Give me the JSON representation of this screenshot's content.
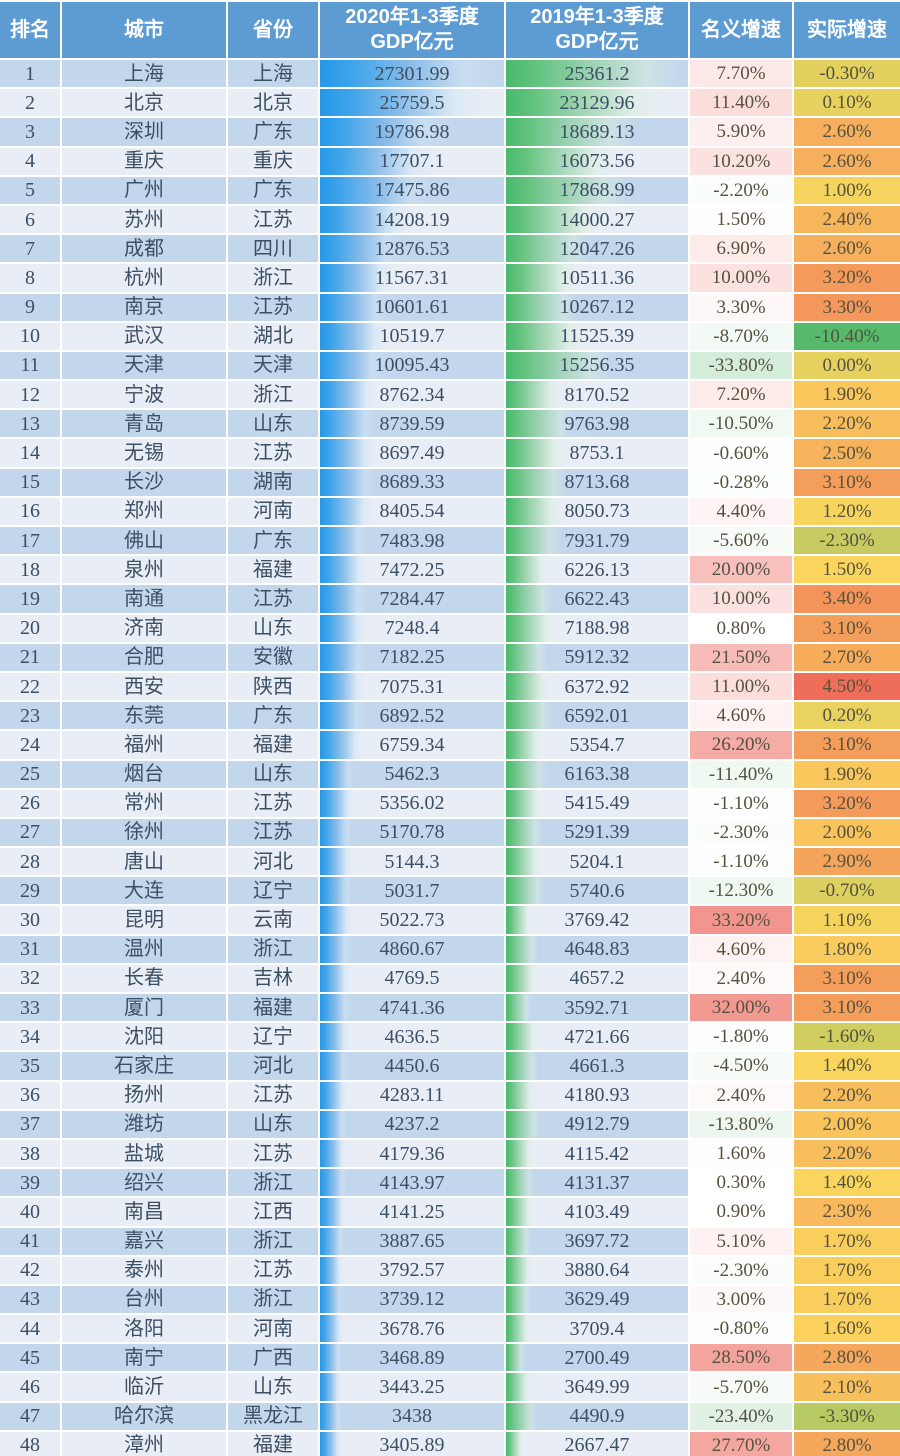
{
  "table_title": "",
  "header": {
    "columns": [
      "排名",
      "城市",
      "省份",
      "2020年1-3季度\nGDP亿元",
      "2019年1-3季度\nGDP亿元",
      "名义增速",
      "实际增速"
    ]
  },
  "colors": {
    "header_bg": "#5d9bd3",
    "stripe_dark": "#c3d7ec",
    "stripe_light": "#e9eef6",
    "bar_blue": "#2598e8",
    "bar_green": "#49b96d",
    "text_main": "#3d4f63",
    "nominal_scale": {
      "min": -33.8,
      "mid": 1.0,
      "max": 33.2,
      "min_color": "#d4ecda",
      "mid_color": "#ffffff",
      "max_color": "#f2958e"
    },
    "real_scale": {
      "min": -10.4,
      "mid": 1.5,
      "max": 4.5,
      "min_color": "#56b96b",
      "mid_color": "#fbd55d",
      "max_color": "#ee6e59"
    }
  },
  "chart_data": {
    "type": "table",
    "title": "2020年1-3季度城市GDP排名",
    "columns": [
      "排名",
      "城市",
      "省份",
      "2020年1-3季度GDP亿元",
      "2019年1-3季度GDP亿元",
      "名义增速",
      "实际增速"
    ],
    "rows": [
      {
        "rank": "1",
        "city": "上海",
        "province": "上海",
        "gdp_2020": "27301.99",
        "gdp_2019": "25361.2",
        "nominal": "7.70%",
        "real": "-0.30%"
      },
      {
        "rank": "2",
        "city": "北京",
        "province": "北京",
        "gdp_2020": "25759.5",
        "gdp_2019": "23129.96",
        "nominal": "11.40%",
        "real": "0.10%"
      },
      {
        "rank": "3",
        "city": "深圳",
        "province": "广东",
        "gdp_2020": "19786.98",
        "gdp_2019": "18689.13",
        "nominal": "5.90%",
        "real": "2.60%"
      },
      {
        "rank": "4",
        "city": "重庆",
        "province": "重庆",
        "gdp_2020": "17707.1",
        "gdp_2019": "16073.56",
        "nominal": "10.20%",
        "real": "2.60%"
      },
      {
        "rank": "5",
        "city": "广州",
        "province": "广东",
        "gdp_2020": "17475.86",
        "gdp_2019": "17868.99",
        "nominal": "-2.20%",
        "real": "1.00%"
      },
      {
        "rank": "6",
        "city": "苏州",
        "province": "江苏",
        "gdp_2020": "14208.19",
        "gdp_2019": "14000.27",
        "nominal": "1.50%",
        "real": "2.40%"
      },
      {
        "rank": "7",
        "city": "成都",
        "province": "四川",
        "gdp_2020": "12876.53",
        "gdp_2019": "12047.26",
        "nominal": "6.90%",
        "real": "2.60%"
      },
      {
        "rank": "8",
        "city": "杭州",
        "province": "浙江",
        "gdp_2020": "11567.31",
        "gdp_2019": "10511.36",
        "nominal": "10.00%",
        "real": "3.20%"
      },
      {
        "rank": "9",
        "city": "南京",
        "province": "江苏",
        "gdp_2020": "10601.61",
        "gdp_2019": "10267.12",
        "nominal": "3.30%",
        "real": "3.30%"
      },
      {
        "rank": "10",
        "city": "武汉",
        "province": "湖北",
        "gdp_2020": "10519.7",
        "gdp_2019": "11525.39",
        "nominal": "-8.70%",
        "real": "-10.40%"
      },
      {
        "rank": "11",
        "city": "天津",
        "province": "天津",
        "gdp_2020": "10095.43",
        "gdp_2019": "15256.35",
        "nominal": "-33.80%",
        "real": "0.00%"
      },
      {
        "rank": "12",
        "city": "宁波",
        "province": "浙江",
        "gdp_2020": "8762.34",
        "gdp_2019": "8170.52",
        "nominal": "7.20%",
        "real": "1.90%"
      },
      {
        "rank": "13",
        "city": "青岛",
        "province": "山东",
        "gdp_2020": "8739.59",
        "gdp_2019": "9763.98",
        "nominal": "-10.50%",
        "real": "2.20%"
      },
      {
        "rank": "14",
        "city": "无锡",
        "province": "江苏",
        "gdp_2020": "8697.49",
        "gdp_2019": "8753.1",
        "nominal": "-0.60%",
        "real": "2.50%"
      },
      {
        "rank": "15",
        "city": "长沙",
        "province": "湖南",
        "gdp_2020": "8689.33",
        "gdp_2019": "8713.68",
        "nominal": "-0.28%",
        "real": "3.10%"
      },
      {
        "rank": "16",
        "city": "郑州",
        "province": "河南",
        "gdp_2020": "8405.54",
        "gdp_2019": "8050.73",
        "nominal": "4.40%",
        "real": "1.20%"
      },
      {
        "rank": "17",
        "city": "佛山",
        "province": "广东",
        "gdp_2020": "7483.98",
        "gdp_2019": "7931.79",
        "nominal": "-5.60%",
        "real": "-2.30%"
      },
      {
        "rank": "18",
        "city": "泉州",
        "province": "福建",
        "gdp_2020": "7472.25",
        "gdp_2019": "6226.13",
        "nominal": "20.00%",
        "real": "1.50%"
      },
      {
        "rank": "19",
        "city": "南通",
        "province": "江苏",
        "gdp_2020": "7284.47",
        "gdp_2019": "6622.43",
        "nominal": "10.00%",
        "real": "3.40%"
      },
      {
        "rank": "20",
        "city": "济南",
        "province": "山东",
        "gdp_2020": "7248.4",
        "gdp_2019": "7188.98",
        "nominal": "0.80%",
        "real": "3.10%"
      },
      {
        "rank": "21",
        "city": "合肥",
        "province": "安徽",
        "gdp_2020": "7182.25",
        "gdp_2019": "5912.32",
        "nominal": "21.50%",
        "real": "2.70%"
      },
      {
        "rank": "22",
        "city": "西安",
        "province": "陕西",
        "gdp_2020": "7075.31",
        "gdp_2019": "6372.92",
        "nominal": "11.00%",
        "real": "4.50%"
      },
      {
        "rank": "23",
        "city": "东莞",
        "province": "广东",
        "gdp_2020": "6892.52",
        "gdp_2019": "6592.01",
        "nominal": "4.60%",
        "real": "0.20%"
      },
      {
        "rank": "24",
        "city": "福州",
        "province": "福建",
        "gdp_2020": "6759.34",
        "gdp_2019": "5354.7",
        "nominal": "26.20%",
        "real": "3.10%"
      },
      {
        "rank": "25",
        "city": "烟台",
        "province": "山东",
        "gdp_2020": "5462.3",
        "gdp_2019": "6163.38",
        "nominal": "-11.40%",
        "real": "1.90%"
      },
      {
        "rank": "26",
        "city": "常州",
        "province": "江苏",
        "gdp_2020": "5356.02",
        "gdp_2019": "5415.49",
        "nominal": "-1.10%",
        "real": "3.20%"
      },
      {
        "rank": "27",
        "city": "徐州",
        "province": "江苏",
        "gdp_2020": "5170.78",
        "gdp_2019": "5291.39",
        "nominal": "-2.30%",
        "real": "2.00%"
      },
      {
        "rank": "28",
        "city": "唐山",
        "province": "河北",
        "gdp_2020": "5144.3",
        "gdp_2019": "5204.1",
        "nominal": "-1.10%",
        "real": "2.90%"
      },
      {
        "rank": "29",
        "city": "大连",
        "province": "辽宁",
        "gdp_2020": "5031.7",
        "gdp_2019": "5740.6",
        "nominal": "-12.30%",
        "real": "-0.70%"
      },
      {
        "rank": "30",
        "city": "昆明",
        "province": "云南",
        "gdp_2020": "5022.73",
        "gdp_2019": "3769.42",
        "nominal": "33.20%",
        "real": "1.10%"
      },
      {
        "rank": "31",
        "city": "温州",
        "province": "浙江",
        "gdp_2020": "4860.67",
        "gdp_2019": "4648.83",
        "nominal": "4.60%",
        "real": "1.80%"
      },
      {
        "rank": "32",
        "city": "长春",
        "province": "吉林",
        "gdp_2020": "4769.5",
        "gdp_2019": "4657.2",
        "nominal": "2.40%",
        "real": "3.10%"
      },
      {
        "rank": "33",
        "city": "厦门",
        "province": "福建",
        "gdp_2020": "4741.36",
        "gdp_2019": "3592.71",
        "nominal": "32.00%",
        "real": "3.10%"
      },
      {
        "rank": "34",
        "city": "沈阳",
        "province": "辽宁",
        "gdp_2020": "4636.5",
        "gdp_2019": "4721.66",
        "nominal": "-1.80%",
        "real": "-1.60%"
      },
      {
        "rank": "35",
        "city": "石家庄",
        "province": "河北",
        "gdp_2020": "4450.6",
        "gdp_2019": "4661.3",
        "nominal": "-4.50%",
        "real": "1.40%"
      },
      {
        "rank": "36",
        "city": "扬州",
        "province": "江苏",
        "gdp_2020": "4283.11",
        "gdp_2019": "4180.93",
        "nominal": "2.40%",
        "real": "2.20%"
      },
      {
        "rank": "37",
        "city": "潍坊",
        "province": "山东",
        "gdp_2020": "4237.2",
        "gdp_2019": "4912.79",
        "nominal": "-13.80%",
        "real": "2.00%"
      },
      {
        "rank": "38",
        "city": "盐城",
        "province": "江苏",
        "gdp_2020": "4179.36",
        "gdp_2019": "4115.42",
        "nominal": "1.60%",
        "real": "2.20%"
      },
      {
        "rank": "39",
        "city": "绍兴",
        "province": "浙江",
        "gdp_2020": "4143.97",
        "gdp_2019": "4131.37",
        "nominal": "0.30%",
        "real": "1.40%"
      },
      {
        "rank": "40",
        "city": "南昌",
        "province": "江西",
        "gdp_2020": "4141.25",
        "gdp_2019": "4103.49",
        "nominal": "0.90%",
        "real": "2.30%"
      },
      {
        "rank": "41",
        "city": "嘉兴",
        "province": "浙江",
        "gdp_2020": "3887.65",
        "gdp_2019": "3697.72",
        "nominal": "5.10%",
        "real": "1.70%"
      },
      {
        "rank": "42",
        "city": "泰州",
        "province": "江苏",
        "gdp_2020": "3792.57",
        "gdp_2019": "3880.64",
        "nominal": "-2.30%",
        "real": "1.70%"
      },
      {
        "rank": "43",
        "city": "台州",
        "province": "浙江",
        "gdp_2020": "3739.12",
        "gdp_2019": "3629.49",
        "nominal": "3.00%",
        "real": "1.70%"
      },
      {
        "rank": "44",
        "city": "洛阳",
        "province": "河南",
        "gdp_2020": "3678.76",
        "gdp_2019": "3709.4",
        "nominal": "-0.80%",
        "real": "1.60%"
      },
      {
        "rank": "45",
        "city": "南宁",
        "province": "广西",
        "gdp_2020": "3468.89",
        "gdp_2019": "2700.49",
        "nominal": "28.50%",
        "real": "2.80%"
      },
      {
        "rank": "46",
        "city": "临沂",
        "province": "山东",
        "gdp_2020": "3443.25",
        "gdp_2019": "3649.99",
        "nominal": "-5.70%",
        "real": "2.10%"
      },
      {
        "rank": "47",
        "city": "哈尔滨",
        "province": "黑龙江",
        "gdp_2020": "3438",
        "gdp_2019": "4490.9",
        "nominal": "-23.40%",
        "real": "-3.30%"
      },
      {
        "rank": "48",
        "city": "漳州",
        "province": "福建",
        "gdp_2020": "3405.89",
        "gdp_2019": "2667.47",
        "nominal": "27.70%",
        "real": "2.80%"
      }
    ]
  }
}
